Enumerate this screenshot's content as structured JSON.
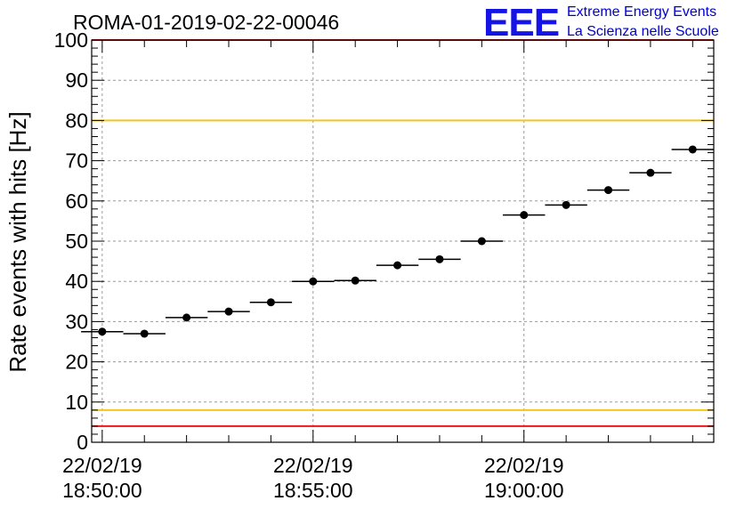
{
  "chart_data": {
    "type": "scatter",
    "title": "ROMA-01-2019-02-22-00046",
    "ylabel": "Rate events with hits [Hz]",
    "xlabel": "",
    "ylim": [
      0,
      100
    ],
    "y_ticks": [
      0,
      10,
      20,
      30,
      40,
      50,
      60,
      70,
      80,
      90,
      100
    ],
    "x_ticks": [
      {
        "date": "22/02/19",
        "time": "18:50:00"
      },
      {
        "date": "22/02/19",
        "time": "18:55:00"
      },
      {
        "date": "22/02/19",
        "time": "19:00:00"
      }
    ],
    "x_range_time": [
      "18:49:45",
      "19:04:30"
    ],
    "bin_width_seconds": 60,
    "grid": true,
    "reference_lines": [
      {
        "y": 4,
        "color": "#e8191e"
      },
      {
        "y": 8,
        "color": "#f2c81e"
      },
      {
        "y": 80,
        "color": "#f2c81e"
      },
      {
        "y": 100,
        "color": "#e8191e"
      }
    ],
    "series": [
      {
        "points": [
          {
            "time": "18:50:00",
            "y": 27.5
          },
          {
            "time": "18:51:00",
            "y": 27.0
          },
          {
            "time": "18:52:00",
            "y": 31.0
          },
          {
            "time": "18:53:00",
            "y": 32.5
          },
          {
            "time": "18:54:00",
            "y": 34.8
          },
          {
            "time": "18:55:00",
            "y": 40.0
          },
          {
            "time": "18:56:00",
            "y": 40.2
          },
          {
            "time": "18:57:00",
            "y": 44.0
          },
          {
            "time": "18:58:00",
            "y": 45.5
          },
          {
            "time": "18:59:00",
            "y": 50.0
          },
          {
            "time": "19:00:00",
            "y": 56.5
          },
          {
            "time": "19:01:00",
            "y": 59.0
          },
          {
            "time": "19:02:00",
            "y": 62.7
          },
          {
            "time": "19:03:00",
            "y": 67.0
          },
          {
            "time": "19:04:00",
            "y": 72.8
          }
        ]
      }
    ]
  },
  "logo": {
    "mark": "EEE",
    "line1": "Extreme Energy Events",
    "line2": "La Scienza nelle Scuole"
  }
}
